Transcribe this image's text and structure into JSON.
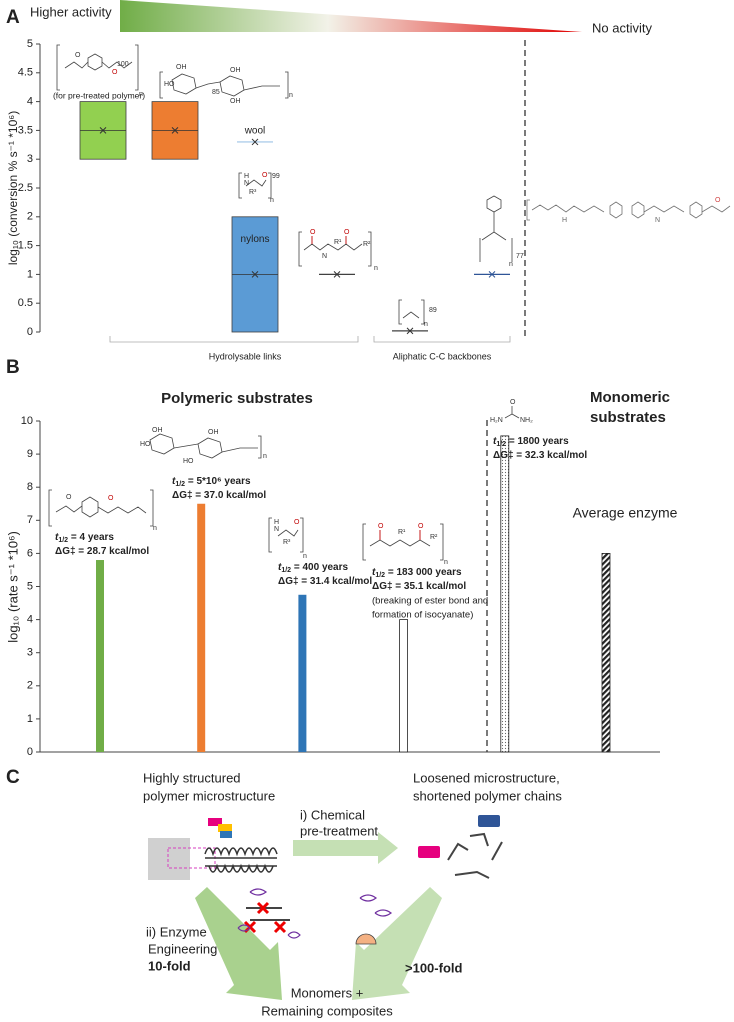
{
  "panel_labels": [
    "A",
    "B",
    "C"
  ],
  "activity_scale": {
    "high": "Higher activity",
    "low": "No activity"
  },
  "structures": {
    "dp": [
      "100",
      "85",
      "99",
      "89",
      "77"
    ],
    "n": "n",
    "atoms": [
      "O",
      "HO",
      "OH",
      "N",
      "H",
      "R¹",
      "R²",
      "R³",
      "H₂N",
      "NH₂"
    ]
  },
  "chart_data": [
    {
      "type": "range",
      "ylabel": "log₁₀ (conversion % s⁻¹ *10⁶)",
      "categories": [
        null,
        null,
        "wool",
        "nylons",
        null,
        null,
        null
      ],
      "values": [
        3.5,
        3.5,
        3.3,
        1,
        1,
        0.02,
        1
      ],
      "low": [
        3,
        3,
        3.3,
        0,
        1,
        0.02,
        1
      ],
      "high": [
        4,
        4,
        3.3,
        2,
        1,
        0.02,
        1
      ],
      "colors": [
        "#92d050",
        "#ed7d31",
        "#9dc3e6",
        "#5b9bd5",
        "#404040",
        "#404040",
        "#2f5597"
      ],
      "ylim": [
        0,
        5
      ],
      "yticks": [
        0,
        0.5,
        1,
        1.5,
        2,
        2.5,
        3,
        3.5,
        4,
        4.5,
        5
      ],
      "annotations": [
        "(for pre-treated polymer)"
      ],
      "groups": [
        "Hydrolysable links",
        "Aliphatic C-C backbones"
      ]
    },
    {
      "type": "bar",
      "ylabel": "log₁₀ (rate s⁻¹ *10⁶)",
      "values": [
        5.8,
        7.5,
        4.75,
        4.0,
        9.55,
        6.0
      ],
      "colors": [
        "#70ad47",
        "#ed7d31",
        "#2e75b6",
        "#ffffff",
        "#ffffff",
        "#ffffff"
      ],
      "patterns": [
        "solid",
        "solid",
        "solid",
        "solid",
        "dotted",
        "hatched"
      ],
      "ylim": [
        0,
        10
      ],
      "yticks": [
        0,
        1,
        2,
        3,
        4,
        5,
        6,
        7,
        8,
        9,
        10
      ],
      "section_titles": [
        "Polymeric substrates",
        "Monomeric",
        "substrates"
      ],
      "average_label": "Average enzyme",
      "t_symbol": "t",
      "t_sub": "1/2",
      "dg_symbol": "ΔG‡",
      "notes": [
        {
          "half_life": " = 4 years",
          "dg": " = 28.7 kcal/mol"
        },
        {
          "half_life": " = 5*10⁶ years",
          "dg": " = 37.0 kcal/mol"
        },
        {
          "half_life": " = 400 years",
          "dg": " = 31.4 kcal/mol"
        },
        {
          "half_life": " = 183 000 years",
          "dg": " = 35.1 kcal/mol"
        },
        {
          "half_life": " = 1800 years",
          "dg": " = 32.3 kcal/mol"
        }
      ],
      "pu_note": [
        "(breaking of ester bond and",
        "formation of isocyanate)"
      ]
    }
  ],
  "panel_c": {
    "start": [
      "Highly structured",
      "polymer microstructure"
    ],
    "pretreatment": [
      "i) Chemical",
      "pre-treatment"
    ],
    "loosened": [
      "Loosened microstructure,",
      "shortened polymer chains"
    ],
    "engineering": [
      "ii) Enzyme",
      "Engineering",
      "10-fold"
    ],
    "fold_gain": ">100-fold",
    "product": [
      "Monomers +",
      "Remaining composites"
    ]
  }
}
